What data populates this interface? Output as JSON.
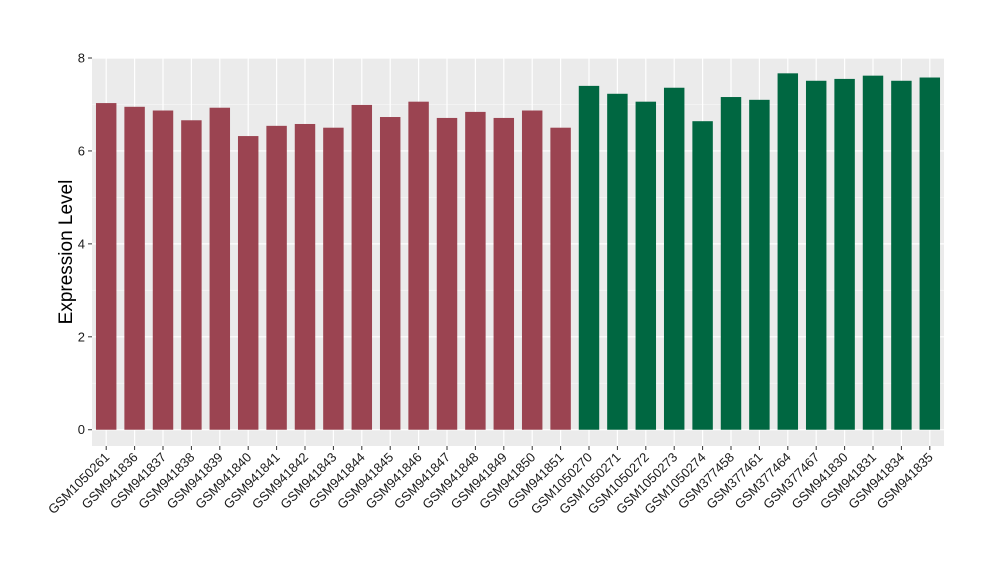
{
  "chart_data": {
    "type": "bar",
    "title": "",
    "xlabel": "",
    "ylabel": "Expression Level",
    "ylim": [
      -0.35,
      8.0
    ],
    "yticks": [
      0,
      2,
      4,
      6,
      8
    ],
    "grid": true,
    "background": "#ebebeb",
    "group_colors": [
      "#9b4451",
      "#006741"
    ],
    "categories": [
      "GSM1050261",
      "GSM941836",
      "GSM941837",
      "GSM941838",
      "GSM941839",
      "GSM941840",
      "GSM941841",
      "GSM941842",
      "GSM941843",
      "GSM941844",
      "GSM941845",
      "GSM941846",
      "GSM941847",
      "GSM941848",
      "GSM941849",
      "GSM941850",
      "GSM941851",
      "GSM1050270",
      "GSM1050271",
      "GSM1050272",
      "GSM1050273",
      "GSM1050274",
      "GSM377458",
      "GSM377461",
      "GSM377464",
      "GSM377467",
      "GSM941830",
      "GSM941831",
      "GSM941834",
      "GSM941835"
    ],
    "values": [
      7.03,
      6.95,
      6.87,
      6.66,
      6.93,
      6.32,
      6.54,
      6.58,
      6.5,
      6.99,
      6.73,
      7.06,
      6.71,
      6.84,
      6.71,
      6.87,
      6.5,
      7.4,
      7.23,
      7.06,
      7.36,
      6.64,
      7.16,
      7.1,
      7.67,
      7.51,
      7.55,
      7.62,
      7.51,
      7.58
    ],
    "groups": [
      0,
      0,
      0,
      0,
      0,
      0,
      0,
      0,
      0,
      0,
      0,
      0,
      0,
      0,
      0,
      0,
      0,
      1,
      1,
      1,
      1,
      1,
      1,
      1,
      1,
      1,
      1,
      1,
      1,
      1
    ]
  }
}
